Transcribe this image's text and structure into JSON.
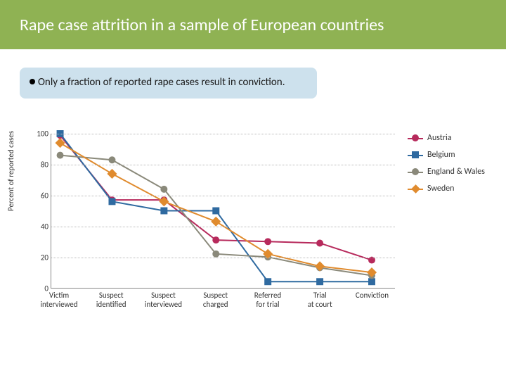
{
  "header": {
    "title": "Rape case attrition in a sample of European countries",
    "bg_color": "#8fb253",
    "text_color": "#ffffff",
    "title_fontsize": 24
  },
  "callout": {
    "text": "Only a fraction of reported rape cases result in conviction.",
    "bg_color": "#cde1ed",
    "text_color": "#1a1a1a"
  },
  "chart": {
    "type": "line",
    "ylabel": "Percent of reported cases",
    "ylim": [
      0,
      100
    ],
    "ytick_step": 20,
    "grid_color": "#b8b8b8",
    "axis_color": "#888888",
    "background_color": "#ffffff",
    "label_fontsize": 11,
    "categories": [
      "Victim\ninterviewed",
      "Suspect\nidentified",
      "Suspect\ninterviewed",
      "Suspect\ncharged",
      "Referred\nfor trial",
      "Trial\nat court",
      "Conviction"
    ],
    "series": [
      {
        "name": "Austria",
        "color": "#b72a5c",
        "marker": "circle",
        "values": [
          99,
          57,
          57,
          31,
          30,
          29,
          18
        ]
      },
      {
        "name": "Belgium",
        "color": "#2f6aa0",
        "marker": "square",
        "values": [
          100,
          56,
          50,
          50,
          4,
          4,
          4
        ]
      },
      {
        "name": "England & Wales",
        "color": "#8a897a",
        "marker": "circle",
        "values": [
          86,
          83,
          64,
          22,
          20,
          13,
          8
        ]
      },
      {
        "name": "Sweden",
        "color": "#e08b2e",
        "marker": "diamond",
        "values": [
          94,
          74,
          56,
          43,
          22,
          14,
          10
        ]
      }
    ],
    "line_width": 2,
    "marker_size": 10
  }
}
